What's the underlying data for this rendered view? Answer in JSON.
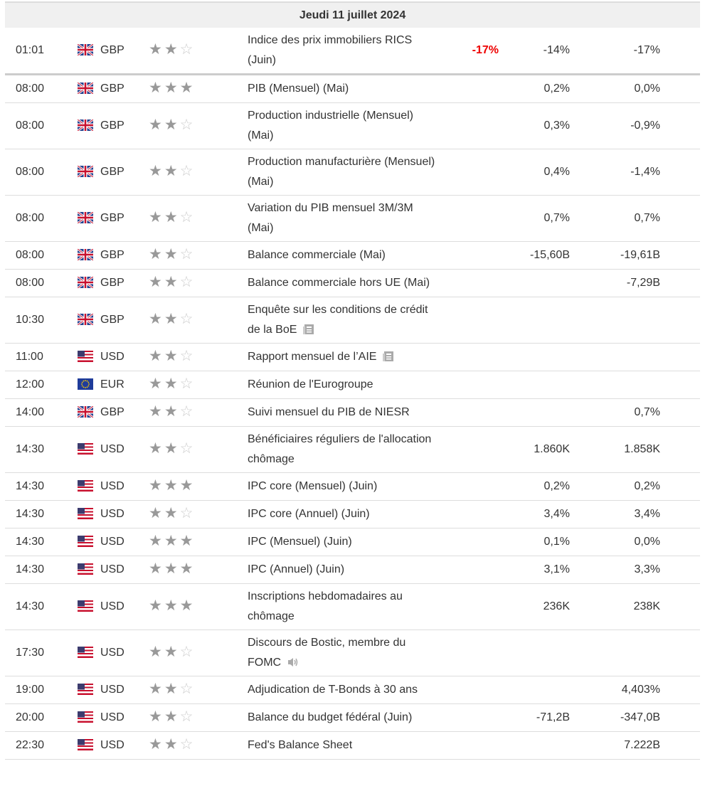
{
  "header": {
    "title": "Jeudi 11 juillet 2024"
  },
  "rows": [
    {
      "time": "01:01",
      "currency": "GBP",
      "importance": 2,
      "event": "Indice des prix immobiliers RICS (Juin)",
      "actual": "-17%",
      "forecast": "-14%",
      "previous": "-17%"
    },
    {
      "time": "08:00",
      "currency": "GBP",
      "importance": 3,
      "event": "PIB (Mensuel) (Mai)",
      "actual": null,
      "forecast": "0,2%",
      "previous": "0,0%"
    },
    {
      "time": "08:00",
      "currency": "GBP",
      "importance": 2,
      "event": "Production industrielle (Mensuel) (Mai)",
      "actual": null,
      "forecast": "0,3%",
      "previous": "-0,9%"
    },
    {
      "time": "08:00",
      "currency": "GBP",
      "importance": 2,
      "event": "Production manufacturière (Mensuel) (Mai)",
      "actual": null,
      "forecast": "0,4%",
      "previous": "-1,4%"
    },
    {
      "time": "08:00",
      "currency": "GBP",
      "importance": 2,
      "event": "Variation du PIB mensuel 3M/3M (Mai)",
      "actual": null,
      "forecast": "0,7%",
      "previous": "0,7%"
    },
    {
      "time": "08:00",
      "currency": "GBP",
      "importance": 2,
      "event": "Balance commerciale (Mai)",
      "actual": null,
      "forecast": "-15,60B",
      "previous": "-19,61B"
    },
    {
      "time": "08:00",
      "currency": "GBP",
      "importance": 2,
      "event": "Balance commerciale hors UE (Mai)",
      "actual": null,
      "forecast": null,
      "previous": "-7,29B"
    },
    {
      "time": "10:30",
      "currency": "GBP",
      "importance": 2,
      "event": "Enquête sur les conditions de crédit de la BoE",
      "icon": "document",
      "actual": null,
      "forecast": null,
      "previous": null
    },
    {
      "time": "11:00",
      "currency": "USD",
      "importance": 2,
      "event": "Rapport mensuel de l’AIE",
      "icon": "document",
      "actual": null,
      "forecast": null,
      "previous": null
    },
    {
      "time": "12:00",
      "currency": "EUR",
      "importance": 2,
      "event": "Réunion de l'Eurogroupe",
      "actual": null,
      "forecast": null,
      "previous": null
    },
    {
      "time": "14:00",
      "currency": "GBP",
      "importance": 2,
      "event": "Suivi mensuel du PIB de NIESR",
      "actual": null,
      "forecast": null,
      "previous": "0,7%"
    },
    {
      "time": "14:30",
      "currency": "USD",
      "importance": 2,
      "event": "Bénéficiaires réguliers de l'allocation chômage",
      "actual": null,
      "forecast": "1.860K",
      "previous": "1.858K"
    },
    {
      "time": "14:30",
      "currency": "USD",
      "importance": 3,
      "event": "IPC core (Mensuel) (Juin)",
      "actual": null,
      "forecast": "0,2%",
      "previous": "0,2%"
    },
    {
      "time": "14:30",
      "currency": "USD",
      "importance": 2,
      "event": "IPC core (Annuel) (Juin)",
      "actual": null,
      "forecast": "3,4%",
      "previous": "3,4%"
    },
    {
      "time": "14:30",
      "currency": "USD",
      "importance": 3,
      "event": "IPC (Mensuel) (Juin)",
      "actual": null,
      "forecast": "0,1%",
      "previous": "0,0%"
    },
    {
      "time": "14:30",
      "currency": "USD",
      "importance": 3,
      "event": "IPC (Annuel) (Juin)",
      "actual": null,
      "forecast": "3,1%",
      "previous": "3,3%"
    },
    {
      "time": "14:30",
      "currency": "USD",
      "importance": 3,
      "event": "Inscriptions hebdomadaires au chômage",
      "actual": null,
      "forecast": "236K",
      "previous": "238K"
    },
    {
      "time": "17:30",
      "currency": "USD",
      "importance": 2,
      "event": "Discours de Bostic, membre du FOMC",
      "icon": "speaker",
      "actual": null,
      "forecast": null,
      "previous": null
    },
    {
      "time": "19:00",
      "currency": "USD",
      "importance": 2,
      "event": "Adjudication de T-Bonds à 30 ans",
      "actual": null,
      "forecast": null,
      "previous": "4,403%"
    },
    {
      "time": "20:00",
      "currency": "USD",
      "importance": 2,
      "event": "Balance du budget fédéral (Juin)",
      "actual": null,
      "forecast": "-71,2B",
      "previous": "-347,0B"
    },
    {
      "time": "22:30",
      "currency": "USD",
      "importance": 2,
      "event": "Fed's Balance Sheet",
      "actual": null,
      "forecast": null,
      "previous": "7.222B"
    }
  ]
}
